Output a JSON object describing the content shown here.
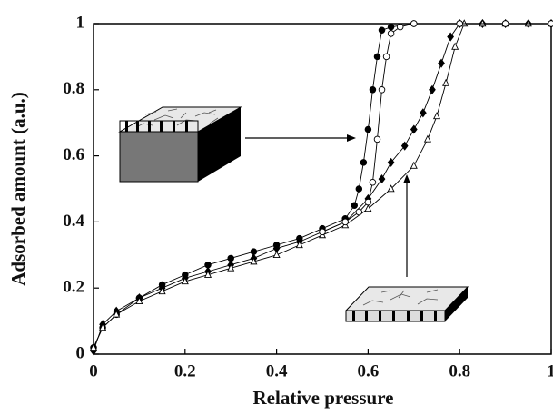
{
  "chart_data": {
    "type": "scatter",
    "x_label": "Relative pressure",
    "y_label": "Adsorbed amount (a.u.)",
    "xlim": [
      0,
      1
    ],
    "ylim": [
      0,
      1
    ],
    "xticks": [
      0,
      0.2,
      0.4,
      0.6,
      0.8,
      1
    ],
    "yticks": [
      0,
      0.2,
      0.4,
      0.6,
      0.8,
      1
    ],
    "color": "#000000",
    "series": [
      {
        "marker": "circle",
        "filled": true,
        "x": [
          1,
          0.9,
          0.8,
          0.7,
          0.65,
          0.63,
          0.62,
          0.61,
          0.6,
          0.59,
          0.58,
          0.57,
          0.55,
          0.5,
          0.45,
          0.4,
          0.35,
          0.3,
          0.25,
          0.2,
          0.15,
          0.1,
          0.05,
          0.02,
          0
        ],
        "values": [
          1,
          1,
          1,
          1,
          0.99,
          0.98,
          0.9,
          0.8,
          0.68,
          0.58,
          0.5,
          0.45,
          0.41,
          0.38,
          0.35,
          0.33,
          0.31,
          0.29,
          0.27,
          0.24,
          0.21,
          0.17,
          0.12,
          0.08,
          0.02
        ]
      },
      {
        "marker": "diamond",
        "filled": true,
        "x": [
          0,
          0.02,
          0.05,
          0.1,
          0.15,
          0.2,
          0.25,
          0.3,
          0.35,
          0.4,
          0.45,
          0.5,
          0.55,
          0.6,
          0.63,
          0.65,
          0.68,
          0.7,
          0.72,
          0.74,
          0.76,
          0.78,
          0.8,
          0.85,
          0.9,
          0.95,
          1
        ],
        "values": [
          0.01,
          0.09,
          0.13,
          0.17,
          0.2,
          0.23,
          0.25,
          0.27,
          0.29,
          0.32,
          0.34,
          0.37,
          0.4,
          0.47,
          0.53,
          0.58,
          0.63,
          0.68,
          0.73,
          0.8,
          0.88,
          0.96,
          1,
          1,
          1,
          1,
          1
        ]
      },
      {
        "marker": "triangle",
        "filled": false,
        "x": [
          0,
          0.02,
          0.05,
          0.1,
          0.15,
          0.2,
          0.25,
          0.3,
          0.35,
          0.4,
          0.45,
          0.5,
          0.55,
          0.6,
          0.65,
          0.7,
          0.73,
          0.75,
          0.77,
          0.79,
          0.81,
          0.85,
          0.9,
          0.95,
          1
        ],
        "values": [
          0.02,
          0.08,
          0.12,
          0.16,
          0.19,
          0.22,
          0.24,
          0.26,
          0.28,
          0.3,
          0.33,
          0.36,
          0.39,
          0.44,
          0.5,
          0.57,
          0.65,
          0.72,
          0.82,
          0.93,
          1,
          1,
          1,
          1,
          1
        ]
      },
      {
        "marker": "circle",
        "filled": false,
        "x": [
          1,
          0.9,
          0.8,
          0.7,
          0.67,
          0.65,
          0.64,
          0.63,
          0.62,
          0.61,
          0.6,
          0.58,
          0.55,
          0.5
        ],
        "values": [
          1,
          1,
          1,
          1,
          0.99,
          0.97,
          0.9,
          0.8,
          0.65,
          0.52,
          0.46,
          0.43,
          0.4,
          0.37
        ]
      }
    ]
  }
}
